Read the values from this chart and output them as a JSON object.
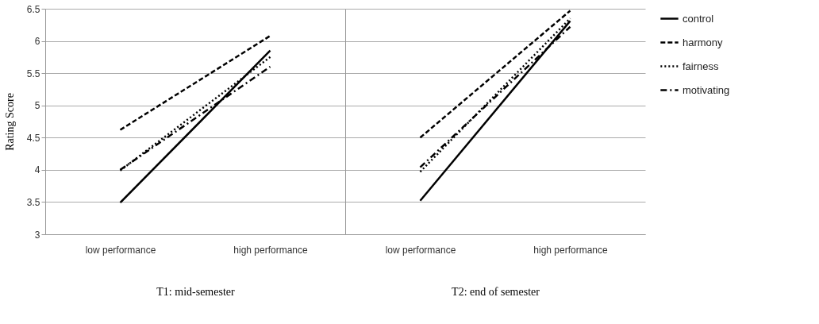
{
  "chart_data": [
    {
      "type": "line",
      "xlabel": "T1: mid-semester",
      "ylabel": "Rating Score",
      "categories": [
        "low performance",
        "high performance"
      ],
      "ylim": [
        3,
        6.5
      ],
      "yticks": [
        3,
        3.5,
        4,
        4.5,
        5,
        5.5,
        6,
        6.5
      ],
      "grid": "y",
      "legend": false,
      "series": [
        {
          "color": "#000000",
          "line_style": "solid",
          "values": [
            3.49,
            5.85
          ]
        },
        {
          "color": "#000000",
          "line_style": "dashed",
          "values": [
            4.62,
            6.08
          ]
        },
        {
          "color": "#000000",
          "line_style": "dotted",
          "values": [
            3.99,
            5.75
          ]
        },
        {
          "color": "#000000",
          "line_style": "dashdot",
          "values": [
            4.0,
            5.6
          ]
        }
      ]
    },
    {
      "type": "line",
      "xlabel": "T2: end of semester",
      "categories": [
        "low performance",
        "high performance"
      ],
      "ylim": [
        3,
        6.5
      ],
      "yticks": [
        3,
        3.5,
        4,
        4.5,
        5,
        5.5,
        6,
        6.5
      ],
      "grid": "y",
      "legend": "right",
      "tick_labels": "x",
      "series": [
        {
          "name": "control",
          "color": "#000000",
          "line_style": "solid",
          "values": [
            3.52,
            6.31
          ]
        },
        {
          "name": "harmony",
          "color": "#000000",
          "line_style": "dashed",
          "values": [
            4.5,
            6.47
          ]
        },
        {
          "name": "fairness",
          "color": "#000000",
          "line_style": "dotted",
          "values": [
            3.97,
            6.35
          ]
        },
        {
          "name": "motivating",
          "color": "#000000",
          "line_style": "dashdot",
          "values": [
            4.04,
            6.22
          ]
        }
      ]
    }
  ]
}
